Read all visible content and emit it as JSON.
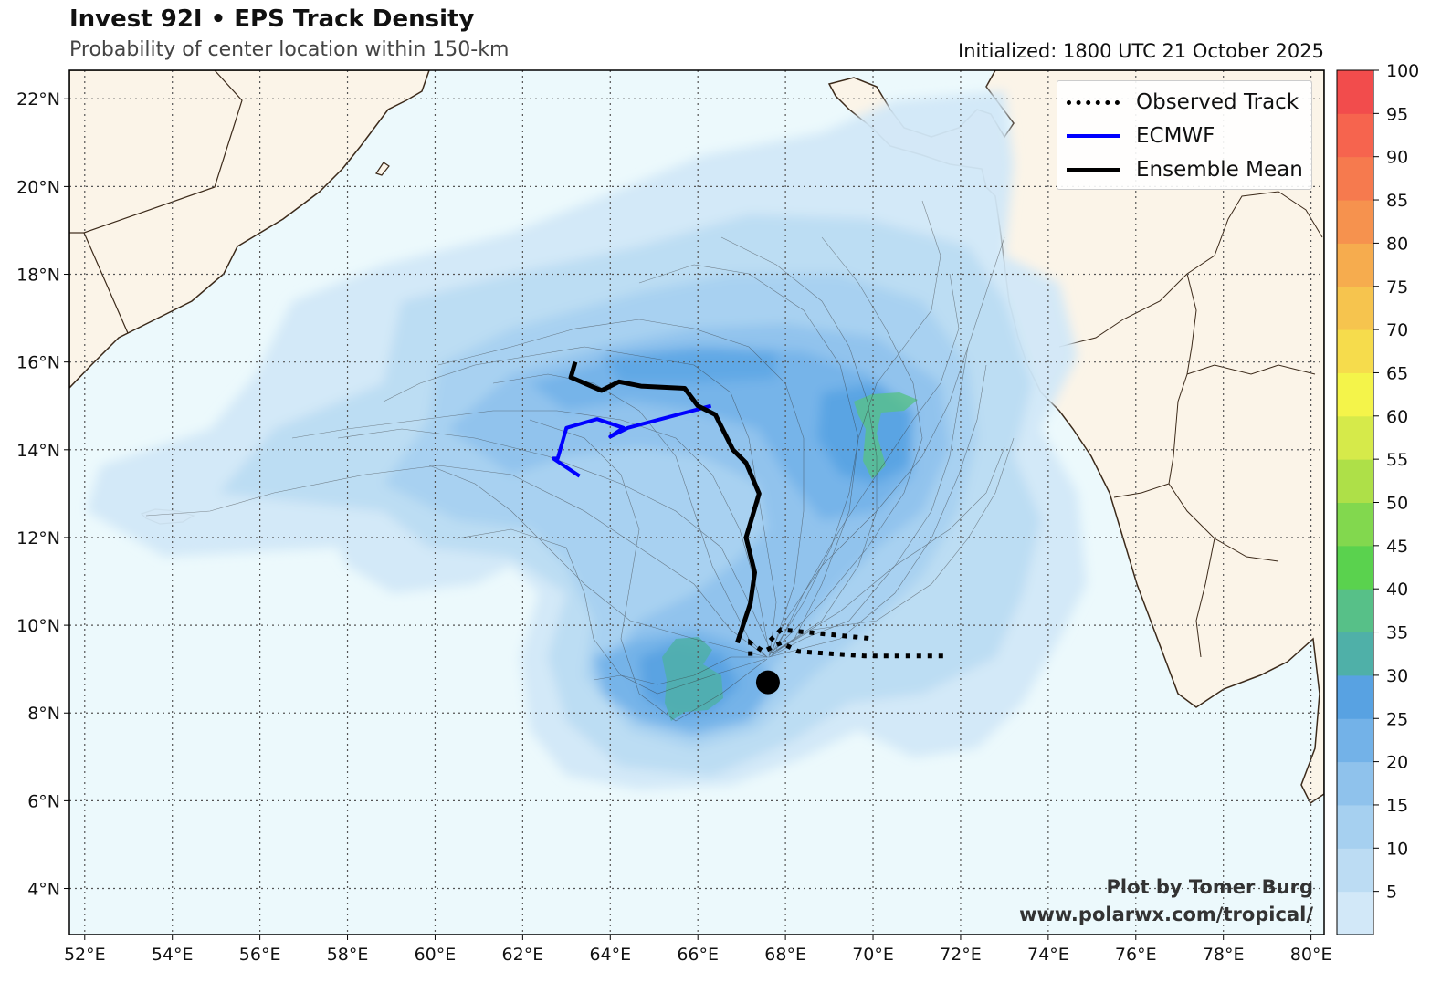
{
  "header": {
    "title": "Invest 92I • EPS Track Density",
    "subtitle": "Probability of center location within 150-km",
    "initialized": "Initialized: 1800 UTC 21 October 2025"
  },
  "credit": {
    "line1": "Plot by Tomer Burg",
    "line2": "www.polarwx.com/tropical/"
  },
  "legend": {
    "items": [
      {
        "label": "Observed Track",
        "style": "dotted",
        "color": "#000000"
      },
      {
        "label": "ECMWF",
        "style": "solid",
        "color": "#0000ff"
      },
      {
        "label": "Ensemble Mean",
        "style": "solid",
        "color": "#000000"
      }
    ]
  },
  "axes": {
    "lon_ticks": [
      "52°E",
      "54°E",
      "56°E",
      "58°E",
      "60°E",
      "62°E",
      "64°E",
      "66°E",
      "68°E",
      "70°E",
      "72°E",
      "74°E",
      "76°E",
      "78°E",
      "80°E"
    ],
    "lat_ticks": [
      "4°N",
      "6°N",
      "8°N",
      "10°N",
      "12°N",
      "14°N",
      "16°N",
      "18°N",
      "20°N",
      "22°N"
    ],
    "lon_values": [
      52,
      54,
      56,
      58,
      60,
      62,
      64,
      66,
      68,
      70,
      72,
      74,
      76,
      78,
      80
    ],
    "lat_values": [
      4,
      6,
      8,
      10,
      12,
      14,
      16,
      18,
      20,
      22
    ]
  },
  "colorbar": {
    "tick_labels": [
      "5",
      "10",
      "15",
      "20",
      "25",
      "30",
      "35",
      "40",
      "45",
      "50",
      "55",
      "60",
      "65",
      "70",
      "75",
      "80",
      "85",
      "90",
      "95",
      "100"
    ],
    "colors": [
      "#d2e8f8",
      "#bcdcf3",
      "#a6d0f0",
      "#8fc2ec",
      "#73b2e8",
      "#58a2e2",
      "#4fb0a8",
      "#57c088",
      "#5ad24e",
      "#82d84e",
      "#aee048",
      "#d6ea4a",
      "#f4f44a",
      "#f6dc4c",
      "#f6c44e",
      "#f6ac4e",
      "#f6924e",
      "#f67a4e",
      "#f6644e",
      "#f24c4c"
    ]
  },
  "map_data": {
    "current_position": {
      "lon": 67.6,
      "lat": 8.7
    },
    "ensemble_mean_track": [
      [
        66.9,
        9.6
      ],
      [
        67.2,
        10.5
      ],
      [
        67.3,
        11.2
      ],
      [
        67.1,
        12.0
      ],
      [
        67.4,
        13.0
      ],
      [
        67.1,
        13.7
      ],
      [
        66.8,
        14.0
      ],
      [
        66.4,
        14.8
      ],
      [
        66.0,
        15.0
      ],
      [
        65.7,
        15.4
      ],
      [
        64.7,
        15.45
      ],
      [
        64.2,
        15.55
      ],
      [
        63.8,
        15.35
      ],
      [
        63.1,
        15.65
      ],
      [
        63.2,
        16.0
      ]
    ],
    "ecmwf_track": [
      [
        66.3,
        15.0
      ],
      [
        64.4,
        14.5
      ],
      [
        64.0,
        14.3
      ],
      [
        64.3,
        14.5
      ],
      [
        63.7,
        14.7
      ],
      [
        63.0,
        14.5
      ],
      [
        62.8,
        13.8
      ],
      [
        62.7,
        13.8
      ],
      [
        63.3,
        13.4
      ]
    ],
    "observed_tracks": [
      [
        [
          71.6,
          9.3
        ],
        [
          69.8,
          9.3
        ],
        [
          68.3,
          9.4
        ],
        [
          67.9,
          9.6
        ],
        [
          67.5,
          9.4
        ],
        [
          67.2,
          9.6
        ],
        [
          67.2,
          9.2
        ]
      ],
      [
        [
          69.9,
          9.7
        ],
        [
          68.9,
          9.8
        ],
        [
          67.9,
          9.9
        ],
        [
          67.6,
          9.6
        ]
      ]
    ],
    "density_max_region": {
      "lon": 65.5,
      "lat": 8.5,
      "probability": 35
    }
  }
}
